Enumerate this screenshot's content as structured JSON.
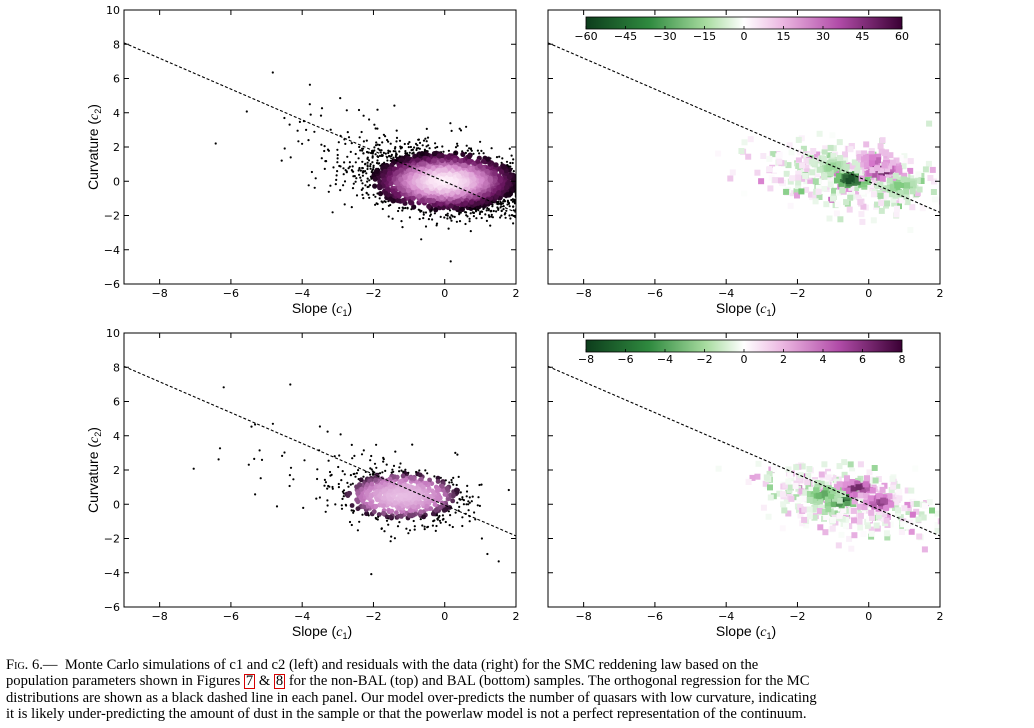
{
  "chart_data": [
    {
      "id": "top-left",
      "type": "scatter",
      "description_source": "non-BAL Monte Carlo simulation",
      "xlabel_var": "Slope",
      "xlabel_sym": "c",
      "xlabel_sub": "1",
      "ylabel_var": "Curvature",
      "ylabel_sym": "c",
      "ylabel_sub": "2",
      "xlim": [
        -9,
        2
      ],
      "ylim": [
        -6,
        10
      ],
      "xticks": [
        -8,
        -6,
        -4,
        -2,
        0,
        2
      ],
      "yticks": [
        -6,
        -4,
        -2,
        0,
        2,
        4,
        6,
        8,
        10
      ],
      "regression_line": {
        "slope": -0.9,
        "intercept": -0.02
      },
      "density": {
        "center": [
          0,
          0
        ],
        "spread": [
          1.15,
          0.95
        ],
        "corr": -0.35,
        "n": 2600,
        "colormap": "purple"
      }
    },
    {
      "id": "top-right",
      "type": "heatmap",
      "xlim": [
        -9,
        2
      ],
      "ylim": [
        -6,
        10
      ],
      "xticks": [
        -8,
        -6,
        -4,
        -2,
        0,
        2
      ],
      "yticks": [],
      "regression_line": {
        "slope": -0.9,
        "intercept": -0.02
      },
      "colorbar": {
        "min": -60,
        "max": 60,
        "ticks": [
          -60,
          -45,
          -30,
          -15,
          0,
          15,
          30,
          45,
          60
        ]
      },
      "residual_clusters": [
        {
          "x": -0.5,
          "y": 0.1,
          "value": -60
        },
        {
          "x": 0.35,
          "y": 0.6,
          "value": 55
        },
        {
          "x": 0.9,
          "y": -0.3,
          "value": -30
        },
        {
          "x": -1.0,
          "y": 0.8,
          "value": -25
        },
        {
          "x": 0.2,
          "y": 1.2,
          "value": 35
        }
      ]
    },
    {
      "id": "bottom-left",
      "type": "scatter",
      "description_source": "BAL Monte Carlo simulation",
      "xlabel_var": "Slope",
      "xlabel_sym": "c",
      "xlabel_sub": "1",
      "ylabel_var": "Curvature",
      "ylabel_sym": "c",
      "ylabel_sub": "2",
      "xlim": [
        -9,
        2
      ],
      "ylim": [
        -6,
        10
      ],
      "xticks": [
        -8,
        -6,
        -4,
        -2,
        0,
        2
      ],
      "yticks": [
        -6,
        -4,
        -2,
        0,
        2,
        4,
        6,
        8,
        10
      ],
      "regression_line": {
        "slope": -0.9,
        "intercept": -0.05
      },
      "density": {
        "center": [
          -1.2,
          0.5
        ],
        "spread": [
          0.9,
          0.75
        ],
        "corr": -0.2,
        "n": 700,
        "colormap": "pink"
      }
    },
    {
      "id": "bottom-right",
      "type": "heatmap",
      "xlim": [
        -9,
        2
      ],
      "ylim": [
        -6,
        10
      ],
      "xticks": [
        -8,
        -6,
        -4,
        -2,
        0,
        2
      ],
      "yticks": [],
      "regression_line": {
        "slope": -0.9,
        "intercept": -0.05
      },
      "colorbar": {
        "min": -8,
        "max": 8,
        "ticks": [
          -8,
          -6,
          -4,
          -2,
          0,
          2,
          4,
          6,
          8
        ]
      },
      "residual_clusters": [
        {
          "x": -0.8,
          "y": 0.3,
          "value": -8
        },
        {
          "x": -0.3,
          "y": 0.9,
          "value": 7
        },
        {
          "x": 0.3,
          "y": 0.1,
          "value": 6
        },
        {
          "x": -1.3,
          "y": 0.6,
          "value": -5
        }
      ]
    }
  ],
  "caption": {
    "fig_label": "Fig. 6.—",
    "line1": "Monte Carlo simulations of c1 and c2 (left) and residuals with the data (right) for the SMC reddening law based on the",
    "line2a": "population parameters shown in Figures ",
    "ref1": "7",
    "amp": " & ",
    "ref2": "8",
    "line2b": " for the non-BAL (top) and BAL (bottom) samples. The orthogonal regression for the MC",
    "line3": "distributions are shown as a black dashed line in each panel. Our model over-predicts the number of quasars with low curvature, indicating",
    "line4": "it is likely under-predicting the amount of dust in the sample or that the powerlaw model is not a perfect representation of the continuum."
  }
}
